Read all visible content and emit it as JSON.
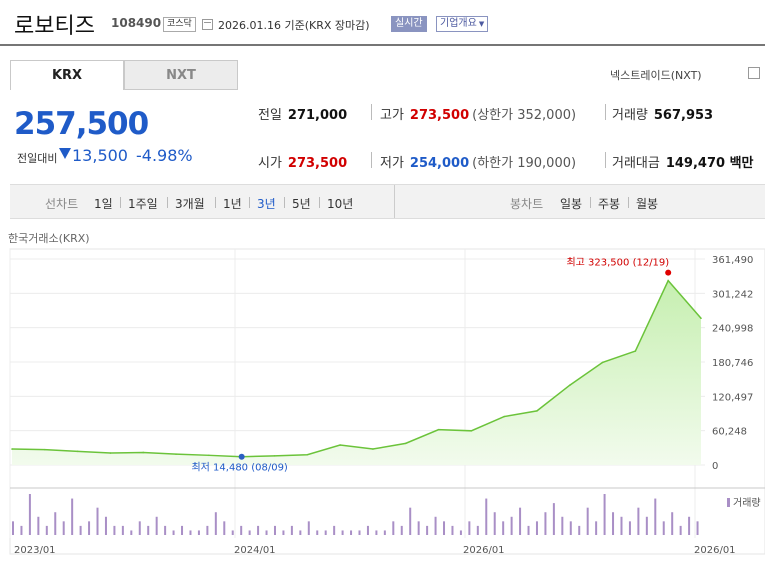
{
  "header": {
    "name": "로보티즈",
    "code": "108490",
    "market": "코스닥",
    "date_text": "2026.01.16  기준(KRX 장마감)",
    "realtime": "실시간",
    "company_info": "기업개요"
  },
  "tabs": {
    "krx": "KRX",
    "nxt": "NXT"
  },
  "nxt_toggle": "넥스트레이드(NXT)",
  "quote": {
    "price": "257,500",
    "diff_label": "전일대비",
    "diff": "13,500",
    "pct": "-4.98%"
  },
  "stats": {
    "prev": {
      "label": "전일",
      "value": "271,000"
    },
    "high": {
      "label": "고가",
      "value": "273,500",
      "limit": "(상한가 352,000)"
    },
    "volume": {
      "label": "거래량",
      "value": "567,953"
    },
    "open": {
      "label": "시가",
      "value": "273,500"
    },
    "low": {
      "label": "저가",
      "value": "254,000",
      "limit": "(하한가 190,000)"
    },
    "amount": {
      "label": "거래대금",
      "value": "149,470 백만"
    }
  },
  "periods": {
    "line_label": "선차트",
    "line": [
      "1일",
      "1주일",
      "3개월",
      "1년",
      "3년",
      "5년",
      "10년"
    ],
    "selected": "3년",
    "candle_label": "봉차트",
    "candle": [
      "일봉",
      "주봉",
      "월봉"
    ]
  },
  "exchange_label": "한국거래소(KRX)",
  "chart_data": {
    "type": "area",
    "y_ticks": [
      "361,490",
      "301,242",
      "240,998",
      "180,746",
      "120,497",
      "60,248",
      "0"
    ],
    "ylim": [
      0,
      361490
    ],
    "x_labels": [
      "2023/01",
      "2024/01",
      "2026/01",
      "2026/01"
    ],
    "x": [
      "2023/01",
      "2023/04",
      "2023/07",
      "2023/10",
      "2024/01",
      "2024/04",
      "2024/07",
      "2024/08",
      "2024/10",
      "2025/01",
      "2025/02",
      "2025/03",
      "2025/04",
      "2025/05",
      "2025/06",
      "2025/07",
      "2025/08",
      "2025/09",
      "2025/10",
      "2025/11",
      "2025/12",
      "2026/01"
    ],
    "series": [
      {
        "values": [
          28000,
          27000,
          24000,
          21000,
          22000,
          19000,
          17000,
          14480,
          16000,
          18000,
          35000,
          28000,
          38000,
          62000,
          60000,
          85000,
          95000,
          140000,
          180000,
          200000,
          323500,
          257500
        ]
      }
    ],
    "annotations": {
      "high": {
        "text": "최고 323,500 (12/19)",
        "value": 323500
      },
      "low": {
        "text": "최저 14,480 (08/09)",
        "value": 14480
      }
    },
    "volume": {
      "label": "거래량",
      "values": [
        3,
        2,
        9,
        4,
        2,
        5,
        3,
        8,
        2,
        3,
        6,
        4,
        2,
        2,
        1,
        3,
        2,
        4,
        2,
        1,
        2,
        1,
        1,
        2,
        5,
        3,
        1,
        2,
        1,
        2,
        1,
        2,
        1,
        2,
        1,
        3,
        1,
        1,
        2,
        1,
        1,
        1,
        2,
        1,
        1,
        3,
        2,
        6,
        3,
        2,
        4,
        3,
        2,
        1,
        3,
        2,
        8,
        5,
        3,
        4,
        6,
        2,
        3,
        5,
        7,
        4,
        3,
        2,
        6,
        3,
        9,
        5,
        4,
        3,
        6,
        4,
        8,
        3,
        5,
        2,
        4,
        3
      ]
    }
  }
}
